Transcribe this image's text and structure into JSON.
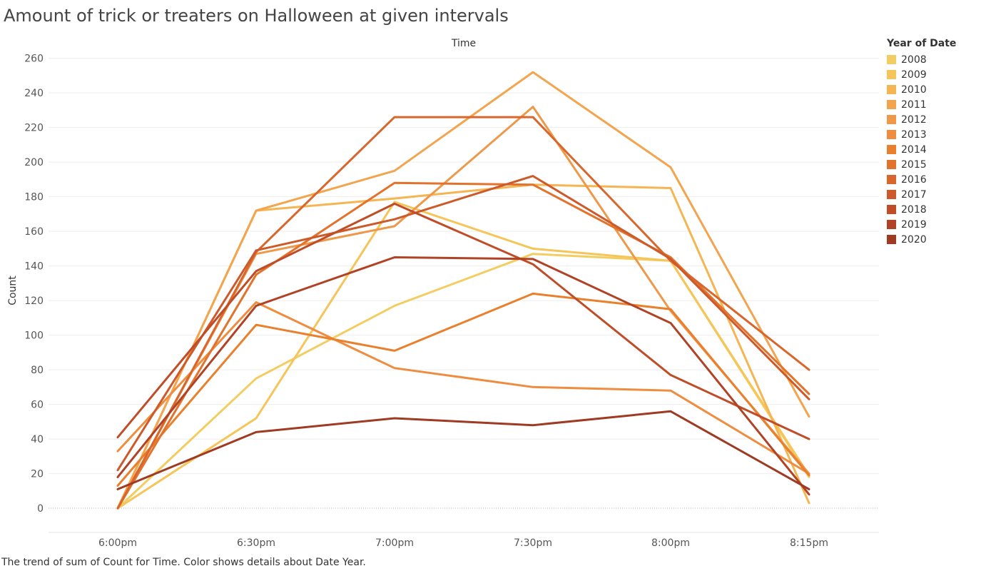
{
  "chart_data": {
    "type": "line",
    "title": "Amount of trick or treaters on Halloween at given intervals",
    "xlabel": "Time",
    "ylabel": "Count",
    "categories": [
      "6:00pm",
      "6:30pm",
      "7:00pm",
      "7:30pm",
      "8:00pm",
      "8:15pm"
    ],
    "ylim": [
      -14,
      264
    ],
    "yticks": [
      0,
      20,
      40,
      60,
      80,
      100,
      120,
      140,
      160,
      180,
      200,
      220,
      240,
      260
    ],
    "grid": true,
    "legend_title": "Year of Date",
    "legend_position": "right",
    "series": [
      {
        "name": "2008",
        "color": "#F2CE62",
        "values": [
          0,
          75,
          117,
          147,
          143,
          18
        ]
      },
      {
        "name": "2009",
        "color": "#F5C55A",
        "values": [
          0,
          52,
          177,
          150,
          143,
          19
        ]
      },
      {
        "name": "2010",
        "color": "#F4B552",
        "values": [
          0,
          172,
          179,
          187,
          185,
          3
        ]
      },
      {
        "name": "2011",
        "color": "#F2A54E",
        "values": [
          0,
          172,
          195,
          252,
          197,
          53
        ]
      },
      {
        "name": "2012",
        "color": "#EE984A",
        "values": [
          0,
          147,
          163,
          232,
          114,
          20
        ]
      },
      {
        "name": "2013",
        "color": "#EE8D40",
        "values": [
          33,
          119,
          81,
          70,
          68,
          20
        ]
      },
      {
        "name": "2014",
        "color": "#E8802E",
        "values": [
          13,
          106,
          91,
          124,
          115,
          19
        ]
      },
      {
        "name": "2015",
        "color": "#E2732D",
        "values": [
          0,
          135,
          188,
          187,
          145,
          66
        ]
      },
      {
        "name": "2016",
        "color": "#D8672D",
        "values": [
          0,
          148,
          226,
          226,
          143,
          80
        ]
      },
      {
        "name": "2017",
        "color": "#CC5A2A",
        "values": [
          22,
          149,
          167,
          192,
          144,
          63
        ]
      },
      {
        "name": "2018",
        "color": "#BF4D27",
        "values": [
          41,
          137,
          176,
          141,
          77,
          40
        ]
      },
      {
        "name": "2019",
        "color": "#B04326",
        "values": [
          18,
          117,
          145,
          144,
          107,
          8
        ]
      },
      {
        "name": "2020",
        "color": "#9E3B22",
        "values": [
          11,
          44,
          52,
          48,
          56,
          11
        ]
      }
    ],
    "caption": "The trend of sum of Count for Time.  Color shows details about Date Year."
  }
}
